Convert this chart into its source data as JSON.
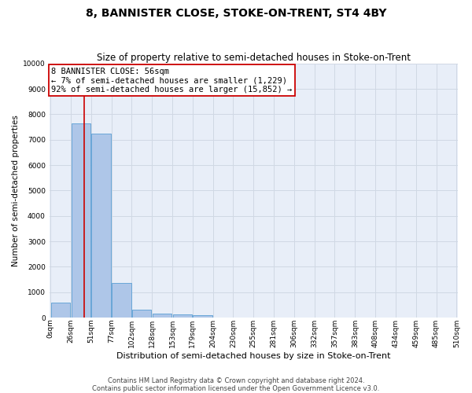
{
  "title": "8, BANNISTER CLOSE, STOKE-ON-TRENT, ST4 4BY",
  "subtitle": "Size of property relative to semi-detached houses in Stoke-on-Trent",
  "xlabel": "Distribution of semi-detached houses by size in Stoke-on-Trent",
  "ylabel": "Number of semi-detached properties",
  "bar_values": [
    600,
    7650,
    7250,
    1380,
    330,
    160,
    130,
    90,
    0,
    0,
    0,
    0,
    0,
    0,
    0,
    0,
    0,
    0,
    0,
    0
  ],
  "bar_labels": [
    "0sqm",
    "26sqm",
    "51sqm",
    "77sqm",
    "102sqm",
    "128sqm",
    "153sqm",
    "179sqm",
    "204sqm",
    "230sqm",
    "255sqm",
    "281sqm",
    "306sqm",
    "332sqm",
    "357sqm",
    "383sqm",
    "408sqm",
    "434sqm",
    "459sqm",
    "485sqm",
    "510sqm"
  ],
  "bar_color": "#aec6e8",
  "bar_edge_color": "#5a9fd4",
  "vline_x": 1.18,
  "vline_color": "#cc0000",
  "annotation_text": "8 BANNISTER CLOSE: 56sqm\n← 7% of semi-detached houses are smaller (1,229)\n92% of semi-detached houses are larger (15,852) →",
  "annotation_box_facecolor": "#ffffff",
  "annotation_box_edgecolor": "#cc0000",
  "ylim": [
    0,
    10000
  ],
  "yticks": [
    0,
    1000,
    2000,
    3000,
    4000,
    5000,
    6000,
    7000,
    8000,
    9000,
    10000
  ],
  "grid_color": "#d0d8e4",
  "background_color": "#e8eef8",
  "footer_line1": "Contains HM Land Registry data © Crown copyright and database right 2024.",
  "footer_line2": "Contains public sector information licensed under the Open Government Licence v3.0.",
  "title_fontsize": 10,
  "subtitle_fontsize": 8.5,
  "xlabel_fontsize": 8,
  "ylabel_fontsize": 7.5,
  "tick_fontsize": 6.5,
  "footer_fontsize": 6,
  "annotation_fontsize": 7.5
}
